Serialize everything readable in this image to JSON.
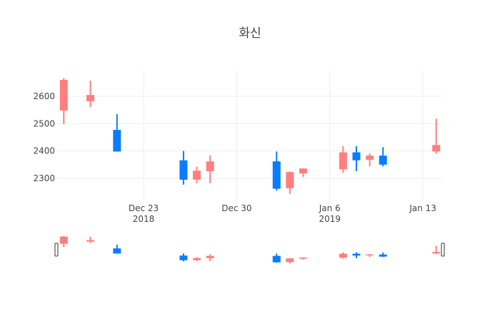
{
  "chart_data": {
    "type": "candlestick",
    "title": "화신",
    "xlabel": "",
    "ylabel": "",
    "x_ticks": [
      {
        "label": "Dec 23",
        "sublabel": "2018",
        "date": "2018-12-23"
      },
      {
        "label": "Dec 30",
        "sublabel": "",
        "date": "2018-12-30"
      },
      {
        "label": "Jan 6",
        "sublabel": "2019",
        "date": "2019-01-06"
      },
      {
        "label": "Jan 13",
        "sublabel": "",
        "date": "2019-01-13"
      }
    ],
    "y_ticks": [
      2300,
      2400,
      2500,
      2600
    ],
    "ylim": [
      2215,
      2700
    ],
    "xlim": [
      "2018-12-16T12:00",
      "2019-01-14T12:00"
    ],
    "grid": true,
    "rangeslider": true,
    "increasing_color": "#FF7F7F",
    "decreasing_color": "#0A7CFF",
    "candles": [
      {
        "date": "2018-12-17",
        "open": 2548,
        "high": 2666,
        "low": 2498,
        "close": 2660
      },
      {
        "date": "2018-12-19",
        "open": 2582,
        "high": 2657,
        "low": 2560,
        "close": 2605
      },
      {
        "date": "2018-12-21",
        "open": 2477,
        "high": 2535,
        "low": 2398,
        "close": 2398
      },
      {
        "date": "2018-12-26",
        "open": 2366,
        "high": 2400,
        "low": 2277,
        "close": 2295
      },
      {
        "date": "2018-12-27",
        "open": 2295,
        "high": 2343,
        "low": 2282,
        "close": 2328
      },
      {
        "date": "2018-12-28",
        "open": 2326,
        "high": 2384,
        "low": 2282,
        "close": 2362
      },
      {
        "date": "2019-01-02",
        "open": 2362,
        "high": 2398,
        "low": 2255,
        "close": 2262
      },
      {
        "date": "2019-01-03",
        "open": 2264,
        "high": 2325,
        "low": 2243,
        "close": 2323
      },
      {
        "date": "2019-01-04",
        "open": 2318,
        "high": 2336,
        "low": 2305,
        "close": 2336
      },
      {
        "date": "2019-01-07",
        "open": 2333,
        "high": 2418,
        "low": 2320,
        "close": 2395
      },
      {
        "date": "2019-01-08",
        "open": 2395,
        "high": 2418,
        "low": 2326,
        "close": 2366
      },
      {
        "date": "2019-01-09",
        "open": 2368,
        "high": 2392,
        "low": 2344,
        "close": 2383
      },
      {
        "date": "2019-01-10",
        "open": 2383,
        "high": 2414,
        "low": 2344,
        "close": 2350
      },
      {
        "date": "2019-01-14",
        "open": 2398,
        "high": 2518,
        "low": 2390,
        "close": 2422
      }
    ]
  }
}
